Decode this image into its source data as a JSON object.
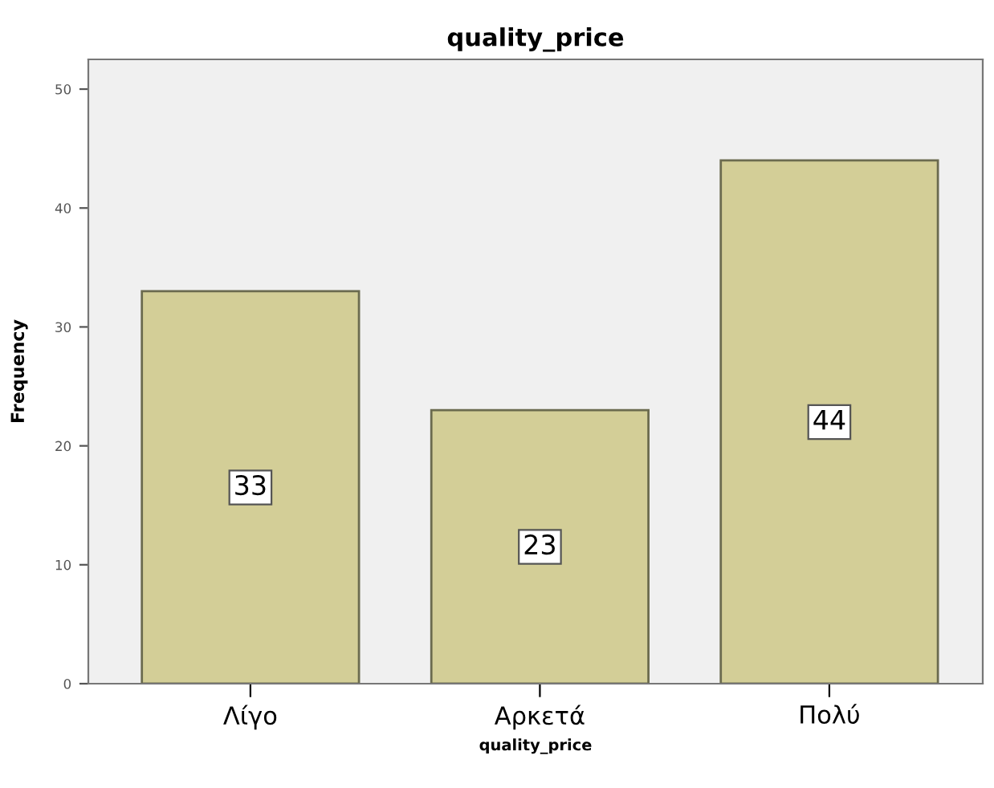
{
  "chart_data": {
    "type": "bar",
    "title": "quality_price",
    "xlabel": "quality_price",
    "ylabel": "Frequency",
    "categories": [
      "Λίγο",
      "Αρκετά",
      "Πολύ"
    ],
    "values": [
      33,
      23,
      44
    ],
    "color": "#d3ce97",
    "ylim": [
      0,
      52.5
    ],
    "yticks": [
      0,
      10,
      20,
      30,
      40,
      50
    ],
    "grid": false,
    "data_labels": true
  }
}
